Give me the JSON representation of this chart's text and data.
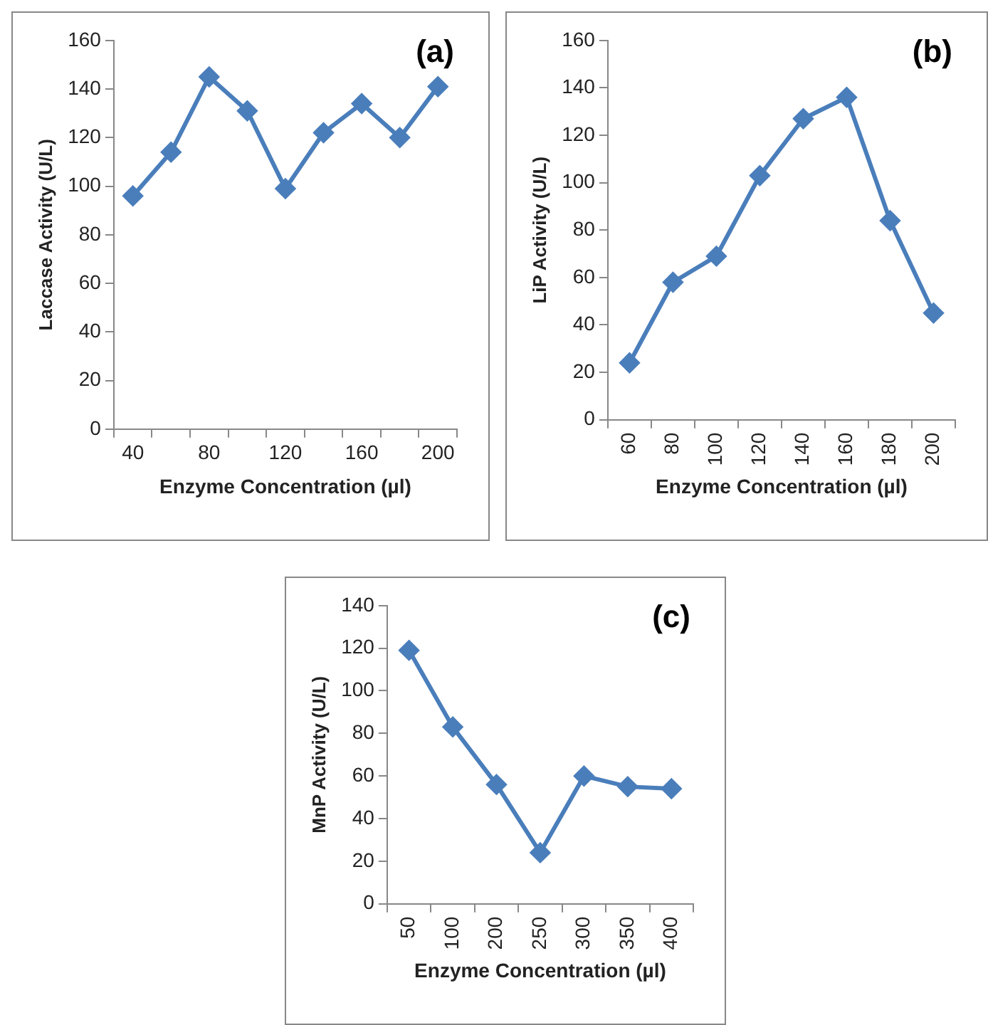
{
  "chart_data": [
    {
      "type": "line",
      "xlabel": "Enzyme Concentration (µl)",
      "ylabel": "Laccase Activity (U/L)",
      "annotations": [
        "(a)"
      ],
      "categories": [
        "40",
        null,
        "80",
        null,
        "120",
        null,
        "160",
        null,
        "200"
      ],
      "series": [
        {
          "color": "#4a7ebb",
          "values": [
            96,
            114,
            145,
            131,
            99,
            122,
            134,
            120,
            141
          ]
        }
      ],
      "ylim": [
        0,
        160
      ],
      "yticks": [
        0,
        20,
        40,
        60,
        80,
        100,
        120,
        140,
        160
      ],
      "grid": false,
      "legend": false,
      "marker": "diamond",
      "line_style": "solid"
    },
    {
      "type": "line",
      "xlabel": "Enzyme Concentration (µl)",
      "ylabel": "LiP Activity (U/L)",
      "annotations": [
        "(b)"
      ],
      "categories": [
        "60",
        "80",
        "100",
        "120",
        "140",
        "160",
        "180",
        "200"
      ],
      "series": [
        {
          "color": "#4a7ebb",
          "values": [
            24,
            58,
            69,
            103,
            127,
            136,
            84,
            45
          ]
        }
      ],
      "ylim": [
        0,
        160
      ],
      "yticks": [
        0,
        20,
        40,
        60,
        80,
        100,
        120,
        140,
        160
      ],
      "grid": false,
      "legend": false,
      "marker": "diamond",
      "line_style": "solid"
    },
    {
      "type": "line",
      "xlabel": "Enzyme Concentration (µl)",
      "ylabel": "MnP Activity (U/L)",
      "annotations": [
        "(c)"
      ],
      "categories": [
        "50",
        "100",
        "200",
        "250",
        "300",
        "350",
        "400"
      ],
      "series": [
        {
          "color": "#4a7ebb",
          "values": [
            119,
            83,
            56,
            24,
            60,
            55,
            54
          ]
        }
      ],
      "ylim": [
        0,
        140
      ],
      "yticks": [
        0,
        20,
        40,
        60,
        80,
        100,
        120,
        140
      ],
      "grid": false,
      "legend": false,
      "marker": "diamond",
      "line_style": "solid"
    }
  ]
}
